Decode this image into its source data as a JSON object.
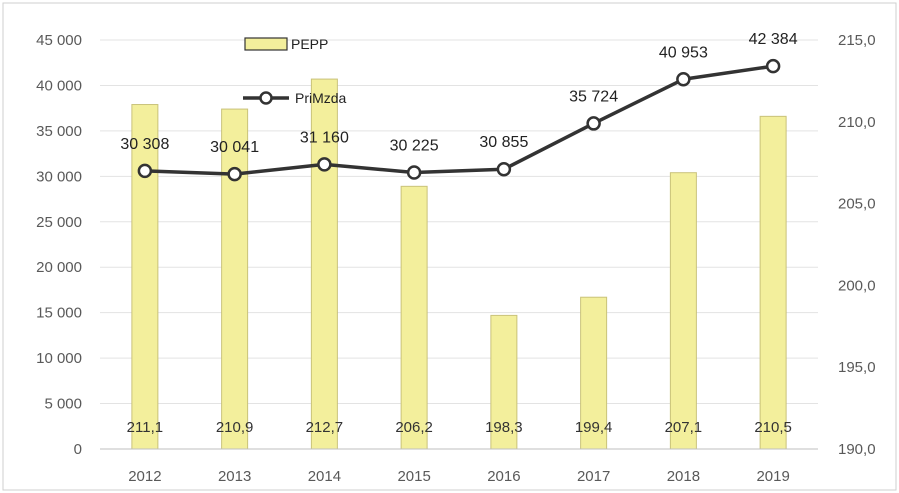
{
  "chart_data": {
    "type": "bar",
    "categories": [
      "2012",
      "2013",
      "2014",
      "2015",
      "2016",
      "2017",
      "2018",
      "2019"
    ],
    "series": [
      {
        "name": "PEPP",
        "kind": "bar",
        "axis": "left",
        "values": [
          37900,
          37400,
          40700,
          28900,
          14700,
          16700,
          30400,
          36600
        ],
        "color": "#f3ef9c",
        "stroke": "#c9c27a"
      },
      {
        "name": "PriMzda",
        "kind": "line",
        "axis": "right",
        "values": [
          207.0,
          206.8,
          207.4,
          206.9,
          207.1,
          209.9,
          212.6,
          213.4
        ],
        "color": "#333333"
      }
    ],
    "bar_labels": [
      "211,1",
      "210,9",
      "212,7",
      "206,2",
      "198,3",
      "199,4",
      "207,1",
      "210,5"
    ],
    "line_labels": [
      "30 308",
      "30 041",
      "31 160",
      "30 225",
      "30 855",
      "35 724",
      "40 953",
      "42 384"
    ],
    "y_left": {
      "ticks": [
        "0",
        "5 000",
        "10 000",
        "15 000",
        "20 000",
        "25 000",
        "30 000",
        "35 000",
        "40 000",
        "45 000"
      ],
      "range": [
        0,
        45000
      ]
    },
    "y_right": {
      "ticks": [
        "190,0",
        "195,0",
        "200,0",
        "205,0",
        "210,0",
        "215,0"
      ],
      "range": [
        190,
        215
      ]
    },
    "legend": [
      {
        "label": "PEPP",
        "kind": "bar"
      },
      {
        "label": "PriMzda",
        "kind": "line"
      }
    ],
    "legend_position": "top-center",
    "grid": true,
    "title": "",
    "xlabel": "",
    "ylabel": ""
  }
}
